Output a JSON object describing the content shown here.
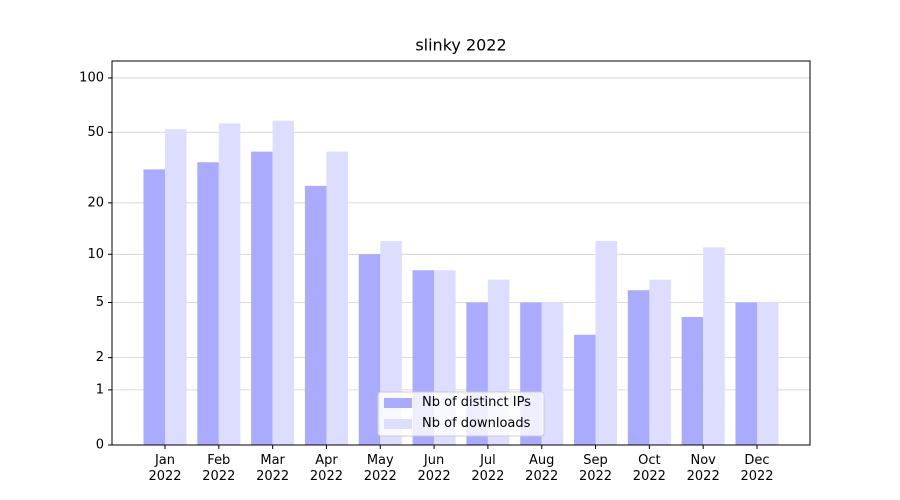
{
  "chart_data": {
    "type": "bar",
    "title": "slinky 2022",
    "categories": [
      "Jan\n2022",
      "Feb\n2022",
      "Mar\n2022",
      "Apr\n2022",
      "May\n2022",
      "Jun\n2022",
      "Jul\n2022",
      "Aug\n2022",
      "Sep\n2022",
      "Oct\n2022",
      "Nov\n2022",
      "Dec\n2022"
    ],
    "series": [
      {
        "name": "Nb of distinct IPs",
        "color": "#aaaaff",
        "values": [
          31,
          34,
          39,
          25,
          10,
          8,
          5,
          5,
          3,
          6,
          4,
          5
        ]
      },
      {
        "name": "Nb of downloads",
        "color": "#ddddff",
        "values": [
          52,
          56,
          58,
          39,
          12,
          8,
          7,
          5,
          12,
          7,
          11,
          5
        ]
      }
    ],
    "yscale": "log1p",
    "ylim": [
      0,
      124
    ],
    "yticks": [
      0,
      1,
      2,
      5,
      10,
      20,
      50,
      100
    ],
    "grid": true,
    "legend": "lower center"
  }
}
